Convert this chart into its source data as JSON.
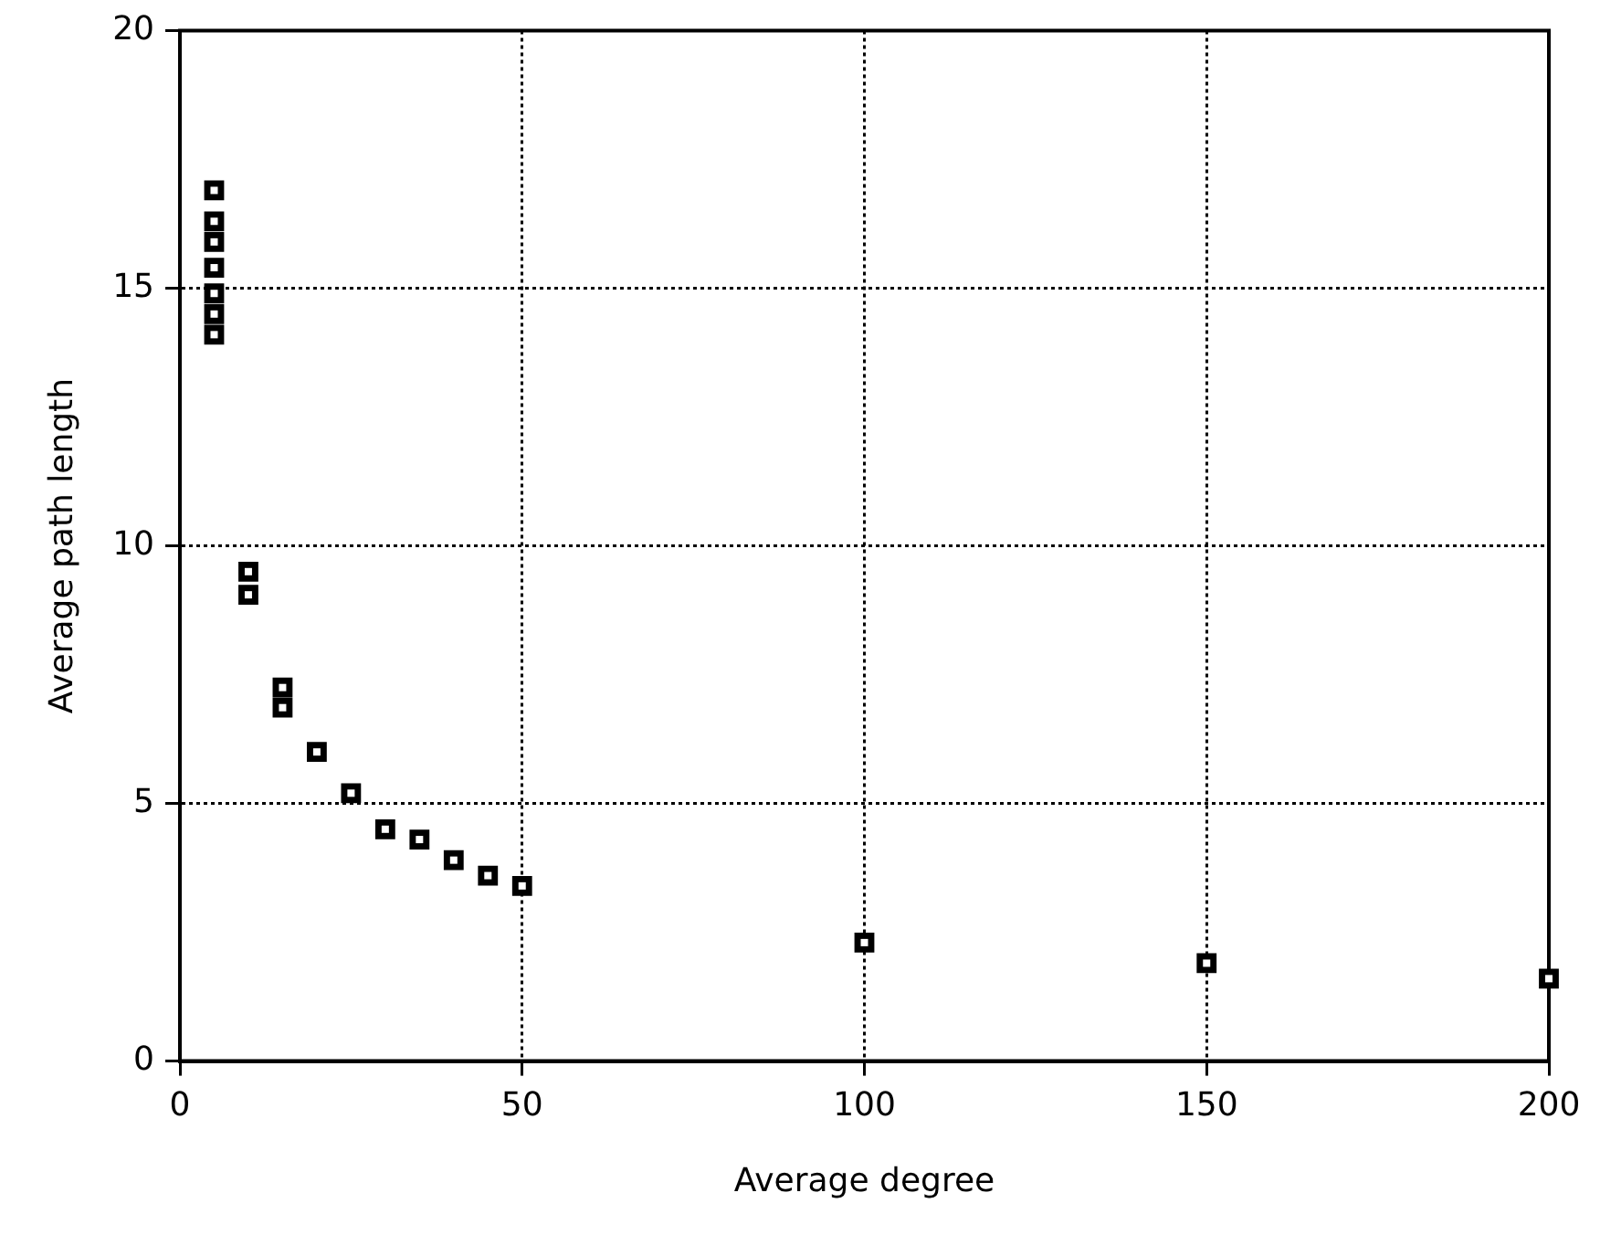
{
  "chart_data": {
    "type": "scatter",
    "xlabel": "Average degree",
    "ylabel": "Average path length",
    "series": [
      {
        "color": "#000000",
        "x": [
          5,
          5,
          5,
          5,
          5,
          5,
          5,
          10,
          10,
          15,
          15,
          20,
          25,
          30,
          35,
          40,
          45,
          50,
          100,
          150,
          200
        ],
        "values": [
          16.9,
          16.3,
          15.9,
          15.4,
          14.9,
          14.5,
          14.1,
          9.5,
          9.05,
          7.25,
          6.86,
          6.0,
          5.2,
          4.5,
          4.3,
          3.9,
          3.6,
          3.4,
          2.3,
          1.9,
          1.6
        ]
      }
    ],
    "xlim": [
      0,
      200
    ],
    "xticks": [
      0,
      50,
      100,
      150,
      200
    ],
    "ylim": [
      0,
      20
    ],
    "yticks": [
      0,
      5,
      10,
      15,
      20
    ],
    "grid": true,
    "marker": "square",
    "legend": false
  }
}
